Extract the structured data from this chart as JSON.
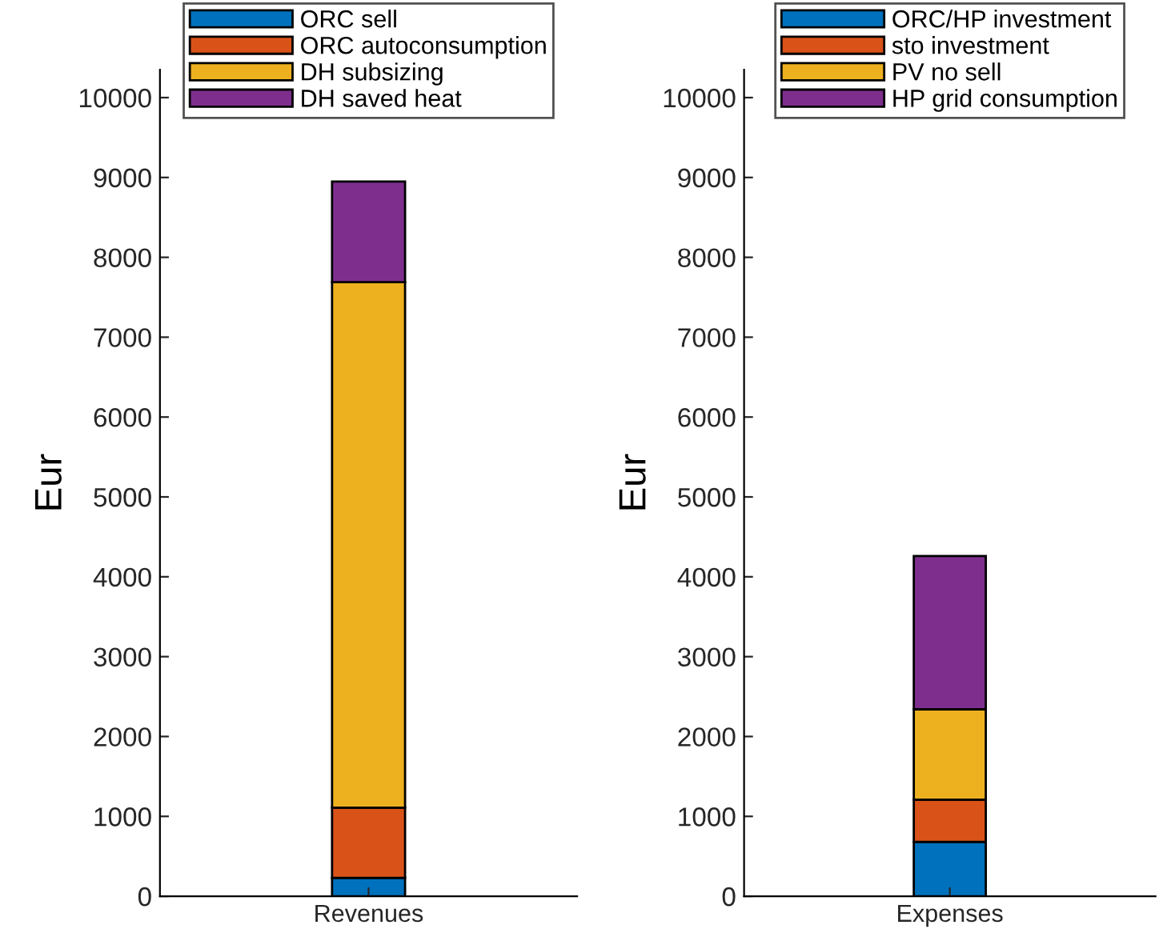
{
  "chart_data": [
    {
      "type": "bar",
      "stacked": true,
      "categories": [
        "Revenues"
      ],
      "ylabel": "Eur",
      "ylim": [
        0,
        10350
      ],
      "yticks": [
        0,
        1000,
        2000,
        3000,
        4000,
        5000,
        6000,
        7000,
        8000,
        9000,
        10000
      ],
      "legend": "top",
      "grid": false,
      "series": [
        {
          "name": "ORC sell",
          "color": "#0072bd",
          "values": [
            230
          ]
        },
        {
          "name": "ORC autoconsumption",
          "color": "#d95319",
          "values": [
            880
          ]
        },
        {
          "name": "DH subsizing",
          "color": "#edb120",
          "values": [
            6580
          ]
        },
        {
          "name": "DH saved heat",
          "color": "#7e2f8e",
          "values": [
            1260
          ]
        }
      ]
    },
    {
      "type": "bar",
      "stacked": true,
      "categories": [
        "Expenses"
      ],
      "ylabel": "Eur",
      "ylim": [
        0,
        10350
      ],
      "yticks": [
        0,
        1000,
        2000,
        3000,
        4000,
        5000,
        6000,
        7000,
        8000,
        9000,
        10000
      ],
      "legend": "top",
      "grid": false,
      "series": [
        {
          "name": "ORC/HP investment",
          "color": "#0072bd",
          "values": [
            680
          ]
        },
        {
          "name": "sto investment",
          "color": "#d95319",
          "values": [
            530
          ]
        },
        {
          "name": "PV no sell",
          "color": "#edb120",
          "values": [
            1130
          ]
        },
        {
          "name": "HP grid consumption",
          "color": "#7e2f8e",
          "values": [
            1920
          ]
        }
      ]
    }
  ]
}
